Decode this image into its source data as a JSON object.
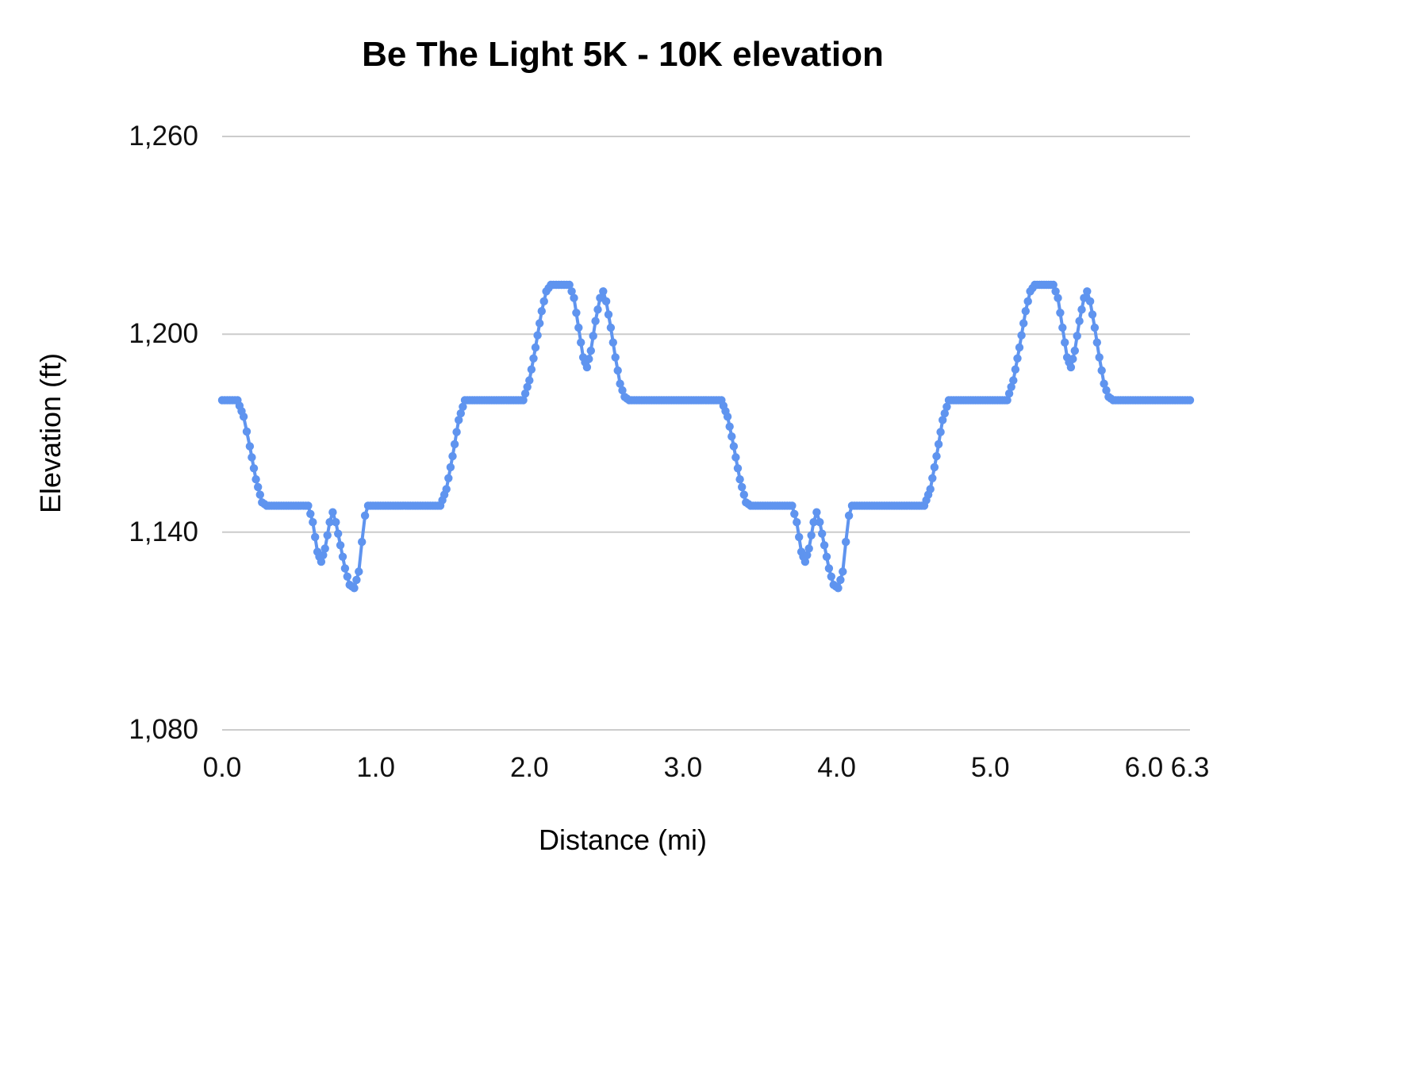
{
  "chart_data": {
    "type": "line",
    "title": "Be The Light 5K - 10K elevation",
    "xlabel": "Distance (mi)",
    "ylabel": "Elevation (ft)",
    "xlim": [
      0,
      6.3
    ],
    "ylim": [
      1080,
      1260
    ],
    "x_ticks": [
      0.0,
      1.0,
      2.0,
      3.0,
      4.0,
      5.0,
      6.0,
      6.3
    ],
    "x_tick_labels": [
      "0.0",
      "1.0",
      "2.0",
      "3.0",
      "4.0",
      "5.0",
      "6.0",
      "6.3"
    ],
    "y_ticks": [
      1080,
      1140,
      1200,
      1260
    ],
    "y_tick_labels": [
      "1,080",
      "1,140",
      "1,200",
      "1,260"
    ],
    "grid": "horizontal",
    "legend": "none",
    "gridline_color": "#cccccc",
    "text_color": "#000000",
    "point_spacing_mi": 0.016,
    "series": [
      {
        "name": "Elevation",
        "color": "#5f94ef",
        "marker": "circle",
        "points": [
          [
            0.0,
            1180
          ],
          [
            0.1,
            1180
          ],
          [
            0.14,
            1175
          ],
          [
            0.18,
            1166
          ],
          [
            0.22,
            1156
          ],
          [
            0.26,
            1149
          ],
          [
            0.29,
            1148
          ],
          [
            0.56,
            1148
          ],
          [
            0.59,
            1143
          ],
          [
            0.62,
            1134
          ],
          [
            0.645,
            1131
          ],
          [
            0.67,
            1135
          ],
          [
            0.7,
            1143
          ],
          [
            0.72,
            1146
          ],
          [
            0.74,
            1143
          ],
          [
            0.77,
            1136
          ],
          [
            0.8,
            1129
          ],
          [
            0.83,
            1124
          ],
          [
            0.86,
            1123
          ],
          [
            0.89,
            1128
          ],
          [
            0.91,
            1137
          ],
          [
            0.93,
            1145
          ],
          [
            0.95,
            1148
          ],
          [
            1.42,
            1148
          ],
          [
            1.46,
            1153
          ],
          [
            1.5,
            1163
          ],
          [
            1.54,
            1174
          ],
          [
            1.58,
            1180
          ],
          [
            1.96,
            1180
          ],
          [
            2.0,
            1186
          ],
          [
            2.04,
            1196
          ],
          [
            2.08,
            1207
          ],
          [
            2.11,
            1213
          ],
          [
            2.14,
            1215
          ],
          [
            2.26,
            1215
          ],
          [
            2.29,
            1211
          ],
          [
            2.32,
            1202
          ],
          [
            2.35,
            1193
          ],
          [
            2.375,
            1190
          ],
          [
            2.4,
            1195
          ],
          [
            2.43,
            1204
          ],
          [
            2.46,
            1211
          ],
          [
            2.48,
            1213
          ],
          [
            2.5,
            1210
          ],
          [
            2.53,
            1202
          ],
          [
            2.56,
            1193
          ],
          [
            2.59,
            1185
          ],
          [
            2.62,
            1181
          ],
          [
            2.65,
            1180
          ],
          [
            3.15,
            1180
          ],
          [
            3.25,
            1180
          ],
          [
            3.29,
            1175
          ],
          [
            3.33,
            1166
          ],
          [
            3.37,
            1156
          ],
          [
            3.41,
            1149
          ],
          [
            3.44,
            1148
          ],
          [
            3.71,
            1148
          ],
          [
            3.74,
            1143
          ],
          [
            3.77,
            1134
          ],
          [
            3.795,
            1131
          ],
          [
            3.82,
            1135
          ],
          [
            3.85,
            1143
          ],
          [
            3.87,
            1146
          ],
          [
            3.89,
            1143
          ],
          [
            3.92,
            1136
          ],
          [
            3.95,
            1129
          ],
          [
            3.98,
            1124
          ],
          [
            4.01,
            1123
          ],
          [
            4.04,
            1128
          ],
          [
            4.06,
            1137
          ],
          [
            4.08,
            1145
          ],
          [
            4.1,
            1148
          ],
          [
            4.57,
            1148
          ],
          [
            4.61,
            1153
          ],
          [
            4.65,
            1163
          ],
          [
            4.69,
            1174
          ],
          [
            4.73,
            1180
          ],
          [
            5.11,
            1180
          ],
          [
            5.15,
            1186
          ],
          [
            5.19,
            1196
          ],
          [
            5.23,
            1207
          ],
          [
            5.26,
            1213
          ],
          [
            5.29,
            1215
          ],
          [
            5.41,
            1215
          ],
          [
            5.44,
            1211
          ],
          [
            5.47,
            1202
          ],
          [
            5.5,
            1193
          ],
          [
            5.525,
            1190
          ],
          [
            5.55,
            1195
          ],
          [
            5.58,
            1204
          ],
          [
            5.61,
            1211
          ],
          [
            5.63,
            1213
          ],
          [
            5.65,
            1210
          ],
          [
            5.68,
            1202
          ],
          [
            5.71,
            1193
          ],
          [
            5.74,
            1185
          ],
          [
            5.77,
            1181
          ],
          [
            5.8,
            1180
          ],
          [
            6.3,
            1180
          ]
        ]
      }
    ]
  }
}
